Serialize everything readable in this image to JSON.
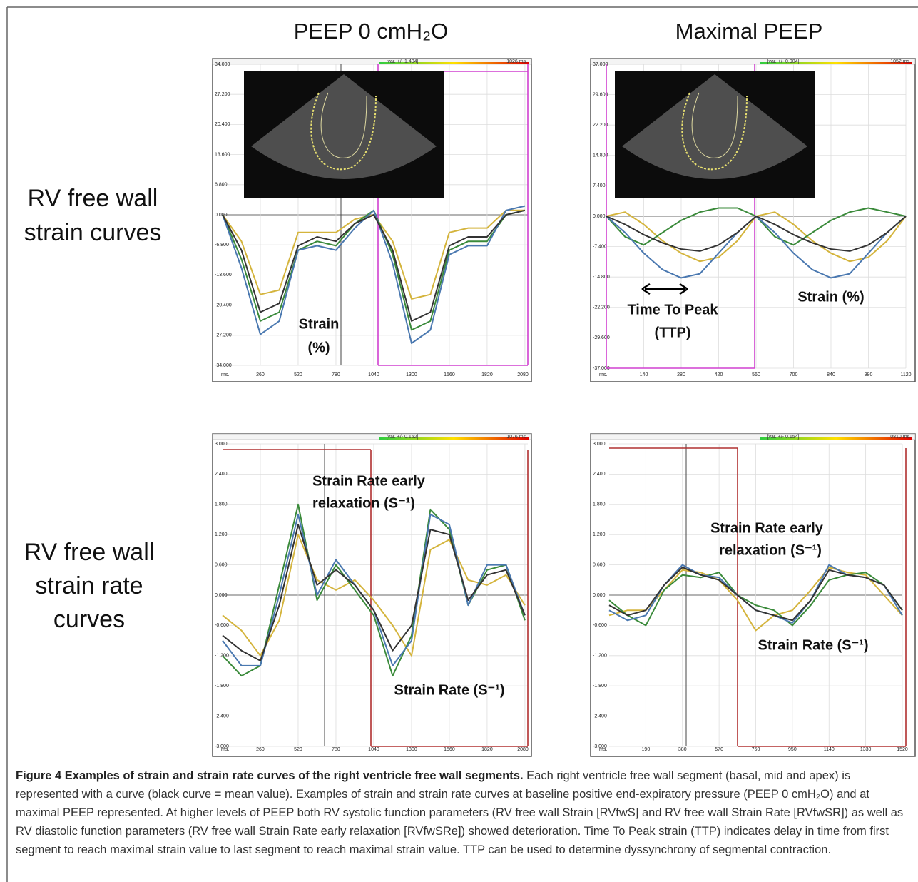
{
  "column_headers": [
    "PEEP 0 cmH₂O",
    "Maximal PEEP"
  ],
  "row_labels": [
    [
      "RV free wall",
      "strain curves"
    ],
    [
      "RV free wall",
      "strain rate",
      "curves"
    ]
  ],
  "panels": [
    {
      "type": "line",
      "header_left": "[var. +/- 1.404]",
      "header_right": "1026 ms.",
      "x_unit": "ms.",
      "xlim": [
        0,
        2100
      ],
      "ylim": [
        -34,
        34
      ],
      "xticks": [
        260,
        520,
        780,
        1040,
        1300,
        1560,
        1820,
        2080
      ],
      "yticks": [
        {
          "value": 34,
          "label": "34.000"
        },
        {
          "value": 27.2,
          "label": "27.200"
        },
        {
          "value": 20.4,
          "label": "20.400"
        },
        {
          "value": 13.6,
          "label": "13.600"
        },
        {
          "value": 6.8,
          "label": "6.800"
        },
        {
          "value": 0,
          "label": "0.000"
        },
        {
          "value": -6.8,
          "label": "-6.800"
        },
        {
          "value": -13.6,
          "label": "-13.600"
        },
        {
          "value": -20.4,
          "label": "-20.400"
        },
        {
          "value": -27.2,
          "label": "-27.200"
        },
        {
          "value": -34,
          "label": "-34.000"
        }
      ],
      "x": [
        0,
        130,
        260,
        390,
        520,
        650,
        780,
        910,
        1040,
        1170,
        1300,
        1430,
        1560,
        1690,
        1820,
        1950,
        2080
      ],
      "series": [
        {
          "color": "#d4b43c",
          "values": [
            0,
            -6,
            -18,
            -17,
            -4,
            -4,
            -4,
            -1,
            0,
            -6,
            -19,
            -18,
            -4,
            -3,
            -3,
            1,
            1
          ]
        },
        {
          "color": "#3a8a3a",
          "values": [
            0,
            -10,
            -24,
            -22,
            -8,
            -6,
            -7,
            -2,
            1,
            -9,
            -26,
            -24,
            -8,
            -6,
            -6,
            0,
            1
          ]
        },
        {
          "color": "#4a78b0",
          "values": [
            0,
            -12,
            -27,
            -24,
            -8,
            -7,
            -8,
            -3,
            1,
            -11,
            -29,
            -26,
            -9,
            -7,
            -7,
            1,
            2
          ]
        },
        {
          "color": "#333333",
          "values": [
            0,
            -8,
            -22,
            -20,
            -7,
            -5,
            -6,
            -2,
            0,
            -8,
            -24,
            -22,
            -7,
            -5,
            -5,
            0,
            1
          ]
        }
      ],
      "annotations": [
        "Strain",
        "(%)"
      ]
    },
    {
      "type": "line",
      "header_left": "[var. +/- 0.904]",
      "header_right": "1052 ms.",
      "x_unit": "ms.",
      "xlim": [
        0,
        1120
      ],
      "ylim": [
        -37,
        37
      ],
      "xticks": [
        140,
        280,
        420,
        560,
        700,
        840,
        980,
        1120
      ],
      "yticks": [
        {
          "value": 37,
          "label": "37.000"
        },
        {
          "value": 29.6,
          "label": "29.600"
        },
        {
          "value": 22.2,
          "label": "22.200"
        },
        {
          "value": 14.8,
          "label": "14.800"
        },
        {
          "value": 7.4,
          "label": "7.400"
        },
        {
          "value": 0,
          "label": "0.000"
        },
        {
          "value": -7.4,
          "label": "-7.400"
        },
        {
          "value": -14.8,
          "label": "-14.800"
        },
        {
          "value": -22.2,
          "label": "-22.200"
        },
        {
          "value": -29.6,
          "label": "-29.600"
        },
        {
          "value": -37,
          "label": "-37.000"
        }
      ],
      "x": [
        0,
        70,
        140,
        210,
        280,
        350,
        420,
        490,
        560,
        630,
        700,
        770,
        840,
        910,
        980,
        1050,
        1120
      ],
      "series": [
        {
          "color": "#d4b43c",
          "values": [
            0,
            1,
            -2,
            -6,
            -9,
            -11,
            -10,
            -6,
            0,
            1,
            -2,
            -6,
            -9,
            -11,
            -10,
            -6,
            0
          ]
        },
        {
          "color": "#3a8a3a",
          "values": [
            0,
            -5,
            -7,
            -4,
            -1,
            1,
            2,
            2,
            0,
            -5,
            -7,
            -4,
            -1,
            1,
            2,
            1,
            0
          ]
        },
        {
          "color": "#4a78b0",
          "values": [
            0,
            -4,
            -9,
            -13,
            -15,
            -14,
            -9,
            -4,
            0,
            -4,
            -9,
            -13,
            -15,
            -14,
            -9,
            -4,
            0
          ]
        },
        {
          "color": "#333333",
          "values": [
            0,
            -2,
            -4.5,
            -6.5,
            -8,
            -8.5,
            -7,
            -4,
            0,
            -2,
            -4.5,
            -6.5,
            -8,
            -8.5,
            -7,
            -4,
            0
          ]
        }
      ],
      "annotations": [
        "Time To Peak",
        "(TTP)",
        "Strain (%)"
      ]
    },
    {
      "type": "line",
      "header_left": "[var. +/- 0.152]",
      "header_right": "1076 ms.",
      "x_unit": "ms.",
      "xlim": [
        0,
        2100
      ],
      "ylim": [
        -3,
        3
      ],
      "xticks": [
        260,
        520,
        780,
        1040,
        1300,
        1560,
        1820,
        2080
      ],
      "yticks": [
        {
          "value": 3,
          "label": "3.000"
        },
        {
          "value": 2.4,
          "label": "2.400"
        },
        {
          "value": 1.8,
          "label": "1.800"
        },
        {
          "value": 1.2,
          "label": "1.200"
        },
        {
          "value": 0.6,
          "label": "0.600"
        },
        {
          "value": 0,
          "label": "0.000"
        },
        {
          "value": -0.6,
          "label": "-0.600"
        },
        {
          "value": -1.2,
          "label": "-1.200"
        },
        {
          "value": -1.8,
          "label": "-1.800"
        },
        {
          "value": -2.4,
          "label": "-2.400"
        },
        {
          "value": -3,
          "label": "-3.000"
        }
      ],
      "x": [
        0,
        130,
        260,
        390,
        520,
        650,
        780,
        910,
        1040,
        1170,
        1300,
        1430,
        1560,
        1690,
        1820,
        1950,
        2080
      ],
      "series": [
        {
          "color": "#d4b43c",
          "values": [
            -0.4,
            -0.7,
            -1.2,
            -0.5,
            1.2,
            0.3,
            0.1,
            0.3,
            -0.1,
            -0.6,
            -1.2,
            0.9,
            1.1,
            0.3,
            0.2,
            0.4,
            -0.2
          ]
        },
        {
          "color": "#3a8a3a",
          "values": [
            -1.2,
            -1.6,
            -1.4,
            0.2,
            1.8,
            -0.1,
            0.6,
            0.1,
            -0.4,
            -1.6,
            -0.8,
            1.7,
            1.3,
            -0.2,
            0.5,
            0.6,
            -0.5
          ]
        },
        {
          "color": "#4a78b0",
          "values": [
            -0.9,
            -1.4,
            -1.4,
            0,
            1.6,
            0,
            0.7,
            0.2,
            -0.3,
            -1.4,
            -0.9,
            1.6,
            1.4,
            -0.2,
            0.6,
            0.6,
            -0.4
          ]
        },
        {
          "color": "#333333",
          "values": [
            -0.8,
            -1.1,
            -1.3,
            -0.2,
            1.4,
            0.2,
            0.5,
            0.2,
            -0.3,
            -1.1,
            -0.6,
            1.3,
            1.2,
            -0.1,
            0.4,
            0.5,
            -0.4
          ]
        }
      ],
      "annotations": [
        "Strain Rate early",
        "relaxation (S⁻¹)",
        "Strain Rate (S⁻¹)"
      ]
    },
    {
      "type": "line",
      "header_left": "[var. +/- 0.154]",
      "header_right": "0810 ms.",
      "x_unit": "ms.",
      "xlim": [
        0,
        1520
      ],
      "ylim": [
        -3,
        3
      ],
      "xticks": [
        190,
        380,
        570,
        760,
        950,
        1140,
        1330,
        1520
      ],
      "yticks": [
        {
          "value": 3,
          "label": "3.000"
        },
        {
          "value": 2.4,
          "label": "2.400"
        },
        {
          "value": 1.8,
          "label": "1.800"
        },
        {
          "value": 1.2,
          "label": "1.200"
        },
        {
          "value": 0.6,
          "label": "0.600"
        },
        {
          "value": 0,
          "label": "0.000"
        },
        {
          "value": -0.6,
          "label": "-0.600"
        },
        {
          "value": -1.2,
          "label": "-1.200"
        },
        {
          "value": -1.8,
          "label": "-1.800"
        },
        {
          "value": -2.4,
          "label": "-2.400"
        },
        {
          "value": -3,
          "label": "-3.000"
        }
      ],
      "x": [
        0,
        95,
        190,
        285,
        380,
        475,
        570,
        665,
        760,
        855,
        950,
        1045,
        1140,
        1235,
        1330,
        1425,
        1520
      ],
      "series": [
        {
          "color": "#d4b43c",
          "values": [
            -0.4,
            -0.3,
            -0.3,
            0.1,
            0.5,
            0.45,
            0.3,
            -0.1,
            -0.7,
            -0.4,
            -0.3,
            0.1,
            0.55,
            0.45,
            0.4,
            0,
            -0.4
          ]
        },
        {
          "color": "#3a8a3a",
          "values": [
            -0.1,
            -0.4,
            -0.6,
            0.1,
            0.4,
            0.35,
            0.45,
            0,
            -0.2,
            -0.3,
            -0.6,
            -0.2,
            0.3,
            0.4,
            0.45,
            0.2,
            -0.3
          ]
        },
        {
          "color": "#4a78b0",
          "values": [
            -0.3,
            -0.5,
            -0.4,
            0.2,
            0.6,
            0.4,
            0.35,
            0,
            -0.3,
            -0.4,
            -0.55,
            -0.1,
            0.6,
            0.4,
            0.35,
            0.2,
            -0.4
          ]
        },
        {
          "color": "#333333",
          "values": [
            -0.2,
            -0.4,
            -0.3,
            0.2,
            0.55,
            0.4,
            0.3,
            0,
            -0.3,
            -0.4,
            -0.5,
            -0.1,
            0.5,
            0.4,
            0.35,
            0.2,
            -0.3
          ]
        }
      ],
      "annotations": [
        "Strain Rate early",
        "relaxation (S⁻¹)",
        "Strain Rate (S⁻¹)"
      ]
    }
  ],
  "caption": {
    "title": "Figure 4 Examples of strain and strain rate curves of the right ventricle free wall segments.",
    "text": "Each right ventricle free wall segment (basal, mid and apex) is represented with a curve (black curve = mean value). Examples of strain and strain rate curves at baseline positive end-expiratory pressure (PEEP 0 cmH₂O) and at maximal PEEP represented. At higher levels of PEEP both RV systolic function parameters (RV free wall Strain [RVfwS] and RV free wall Strain Rate [RVfwSR]) as well as RV diastolic function parameters (RV free wall Strain Rate early relaxation [RVfwSRe]) showed deterioration. Time To Peak strain (TTP) indicates delay in time from first segment to reach maximal strain value to last segment to reach maximal strain value. TTP can be used to determine dyssynchrony of segmental contraction."
  }
}
